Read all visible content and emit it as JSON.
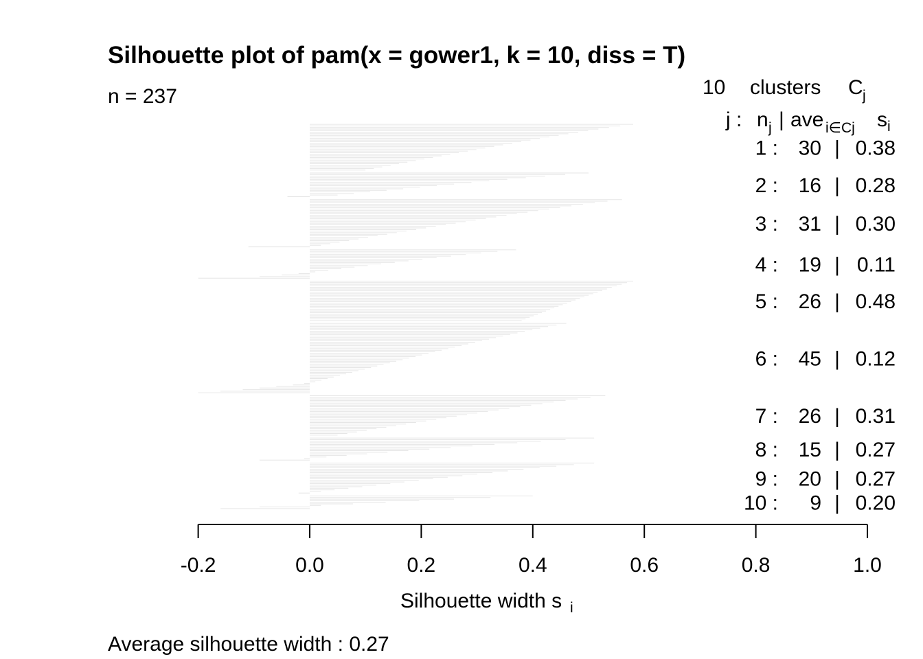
{
  "chart_data": {
    "type": "bar",
    "orientation": "horizontal",
    "title": "Silhouette plot of pam(x = gower1, k = 10, diss = T)",
    "n_label": "n = 237",
    "header": {
      "count": "10",
      "clusters_word": "clusters",
      "c_symbol": "C",
      "c_sub": "j",
      "j_label": "j :",
      "n_label": "n",
      "n_sub": "j",
      "separator": "|",
      "ave_label": "ave",
      "ave_sub": "i∈Cj",
      "s_label": "s",
      "s_sub": "i"
    },
    "xlabel": "Silhouette width s",
    "xlabel_sub": "i",
    "xlim": [
      -0.2,
      1.0
    ],
    "xticks": [
      "-0.2",
      "0.0",
      "0.2",
      "0.4",
      "0.6",
      "0.8",
      "1.0"
    ],
    "xtick_values": [
      -0.2,
      0.0,
      0.2,
      0.4,
      0.6,
      0.8,
      1.0
    ],
    "bar_color": "#e6e6e6",
    "footer": "Average silhouette width :  0.27",
    "clusters": [
      {
        "label": "1 :",
        "n": "30",
        "sep": "|",
        "ave": "0.38",
        "size": 30,
        "max": 0.58,
        "min": 0.1,
        "neg_tail": []
      },
      {
        "label": "2 :",
        "n": "16",
        "sep": "|",
        "ave": "0.28",
        "size": 16,
        "max": 0.5,
        "min": 0.05,
        "neg_tail": [
          -0.04
        ]
      },
      {
        "label": "3 :",
        "n": "31",
        "sep": "|",
        "ave": "0.30",
        "size": 31,
        "max": 0.56,
        "min": 0.02,
        "neg_tail": [
          -0.11
        ]
      },
      {
        "label": "4 :",
        "n": "19",
        "sep": "|",
        "ave": "0.11",
        "size": 19,
        "max": 0.37,
        "min": 0.01,
        "neg_tail": [
          -0.02,
          -0.05,
          -0.09,
          -0.36
        ]
      },
      {
        "label": "5 :",
        "n": "26",
        "sep": "|",
        "ave": "0.48",
        "size": 26,
        "max": 0.58,
        "min": 0.38,
        "neg_tail": []
      },
      {
        "label": "6 :",
        "n": "45",
        "sep": "|",
        "ave": "0.12",
        "size": 45,
        "max": 0.46,
        "min": 0.01,
        "neg_tail": [
          -0.01,
          -0.03,
          -0.06,
          -0.09,
          -0.12,
          -0.16,
          -0.2
        ]
      },
      {
        "label": "7 :",
        "n": "26",
        "sep": "|",
        "ave": "0.31",
        "size": 26,
        "max": 0.53,
        "min": 0.05,
        "neg_tail": []
      },
      {
        "label": "8 :",
        "n": "15",
        "sep": "|",
        "ave": "0.27",
        "size": 15,
        "max": 0.51,
        "min": 0.03,
        "neg_tail": [
          -0.01,
          -0.09
        ]
      },
      {
        "label": "9 :",
        "n": "20",
        "sep": "|",
        "ave": "0.27",
        "size": 20,
        "max": 0.51,
        "min": 0.02,
        "neg_tail": [
          -0.02
        ]
      },
      {
        "label": "10 :",
        "n": "9",
        "sep": "|",
        "ave": "0.20",
        "size": 9,
        "max": 0.4,
        "min": 0.02,
        "neg_tail": [
          -0.09,
          -0.16
        ]
      }
    ]
  }
}
